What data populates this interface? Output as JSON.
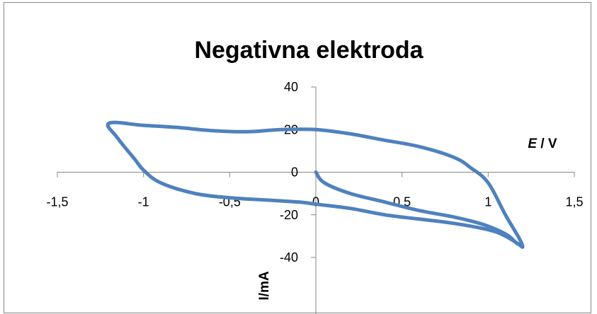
{
  "chart_data": {
    "type": "scatter",
    "title": "Negativna elektroda",
    "xlabel_italic": "E",
    "xlabel_rest": " / V",
    "ylabel": "I/mA",
    "xlim": [
      -1.5,
      1.5
    ],
    "ylim": [
      -40,
      40
    ],
    "x_tick_labels": [
      "-1,5",
      "-1",
      "-0,5",
      "0",
      "0,5",
      "1",
      "1,5"
    ],
    "x_tick_values": [
      -1.5,
      -1,
      -0.5,
      0,
      0.5,
      1,
      1.5
    ],
    "y_tick_labels": [
      "40",
      "20",
      "0",
      "-20",
      "-40"
    ],
    "y_tick_values": [
      40,
      20,
      0,
      -20,
      -40
    ],
    "line_color": "#4F81BD",
    "legend": "none",
    "grid": false,
    "series": [
      {
        "x": [
          0,
          0.05,
          0.2,
          0.4,
          0.6,
          0.8,
          0.95,
          1.05,
          1.12,
          1.16,
          1.18,
          1.2,
          1.18,
          1.1,
          1.0,
          0.9,
          0.8,
          0.6,
          0.4,
          0.2,
          0.0,
          -0.2,
          -0.4,
          -0.6,
          -0.8,
          -1.0,
          -1.2,
          -1.15,
          -1.05,
          -1.0,
          -0.9,
          -0.7,
          -0.5,
          -0.3,
          -0.1,
          0.0,
          0.2,
          0.4,
          0.6,
          0.8,
          1.0,
          1.1,
          1.2
        ],
        "y": [
          0,
          -5,
          -10,
          -14,
          -18,
          -21,
          -24,
          -27,
          -30,
          -33,
          -34,
          -35,
          -31,
          -20,
          -5,
          2,
          7,
          12,
          15,
          18,
          20,
          20,
          19,
          19.5,
          21,
          22,
          23,
          16,
          6,
          1,
          -5,
          -10,
          -12,
          -13,
          -14,
          -15,
          -17,
          -20,
          -22,
          -24,
          -27,
          -30,
          -35
        ]
      }
    ]
  }
}
